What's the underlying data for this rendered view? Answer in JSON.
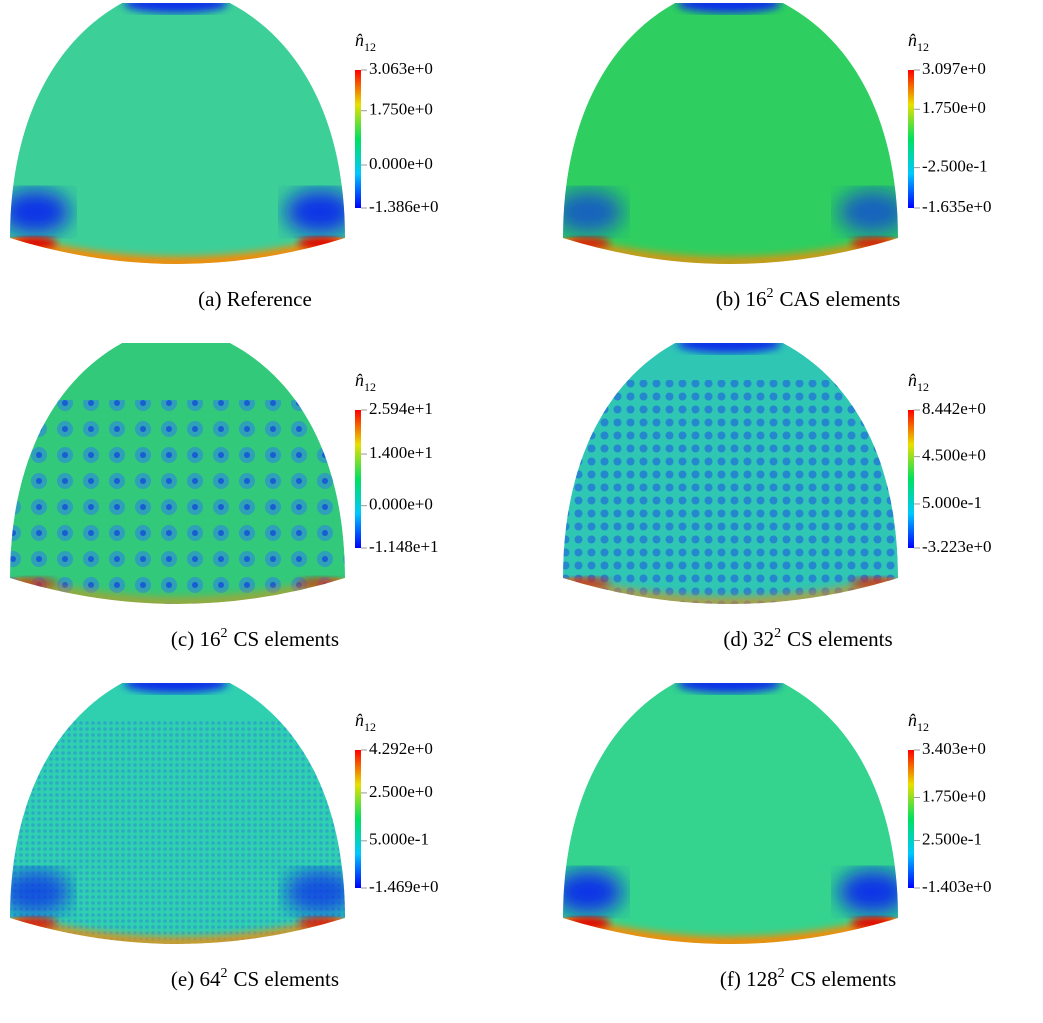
{
  "panels": [
    {
      "caption": {
        "label": "(a)",
        "text": "Reference"
      },
      "colorbar": {
        "symbol": "n̂",
        "subscript": "12",
        "ticks": [
          "3.063e+0",
          "1.750e+0",
          "0.000e+0",
          "-1.386e+0"
        ]
      }
    },
    {
      "caption": {
        "label": "(b)",
        "base": "16",
        "exponent": "2",
        "text": "CAS elements"
      },
      "colorbar": {
        "symbol": "n̂",
        "subscript": "12",
        "ticks": [
          "3.097e+0",
          "1.750e+0",
          "-2.500e-1",
          "-1.635e+0"
        ]
      }
    },
    {
      "caption": {
        "label": "(c)",
        "base": "16",
        "exponent": "2",
        "text": "CS elements"
      },
      "colorbar": {
        "symbol": "n̂",
        "subscript": "12",
        "ticks": [
          "2.594e+1",
          "1.400e+1",
          "0.000e+0",
          "-1.148e+1"
        ]
      }
    },
    {
      "caption": {
        "label": "(d)",
        "base": "32",
        "exponent": "2",
        "text": "CS elements"
      },
      "colorbar": {
        "symbol": "n̂",
        "subscript": "12",
        "ticks": [
          "8.442e+0",
          "4.500e+0",
          "5.000e-1",
          "-3.223e+0"
        ]
      }
    },
    {
      "caption": {
        "label": "(e)",
        "base": "64",
        "exponent": "2",
        "text": "CS elements"
      },
      "colorbar": {
        "symbol": "n̂",
        "subscript": "12",
        "ticks": [
          "4.292e+0",
          "2.500e+0",
          "5.000e-1",
          "-1.469e+0"
        ]
      }
    },
    {
      "caption": {
        "label": "(f)",
        "base": "128",
        "exponent": "2",
        "text": "CS elements"
      },
      "colorbar": {
        "symbol": "n̂",
        "subscript": "12",
        "ticks": [
          "3.403e+0",
          "1.750e+0",
          "2.500e-1",
          "-1.403e+0"
        ]
      }
    }
  ]
}
